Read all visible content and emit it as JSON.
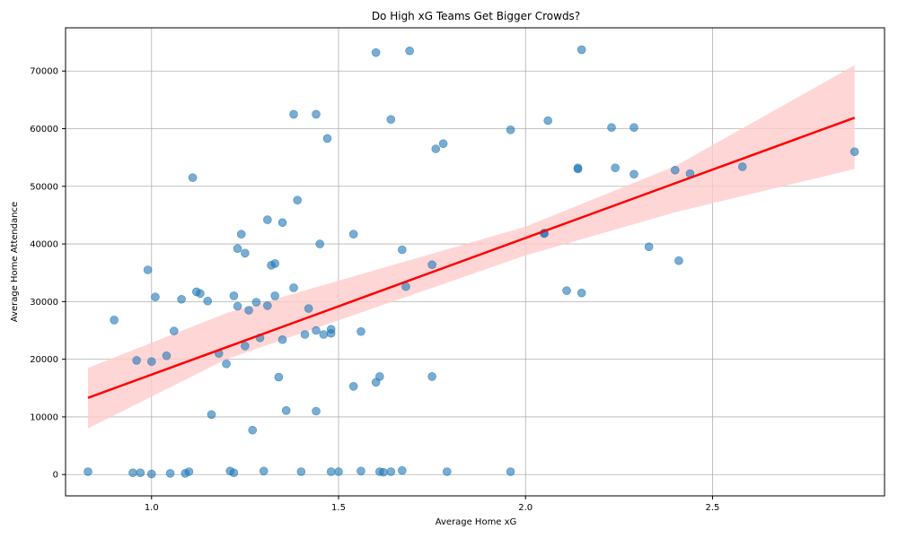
{
  "chart_data": {
    "type": "scatter",
    "title": "Do High xG Teams Get Bigger Crowds?",
    "xlabel": "Average Home xG",
    "ylabel": "Average Home Attendance",
    "xlim": [
      0.77,
      2.96
    ],
    "ylim": [
      -3700,
      77500
    ],
    "grid": true,
    "x_ticks": [
      1.0,
      1.5,
      2.0,
      2.5
    ],
    "x_tick_labels": [
      "1.0",
      "1.5",
      "2.0",
      "2.5"
    ],
    "y_ticks": [
      0,
      10000,
      20000,
      30000,
      40000,
      50000,
      60000,
      70000
    ],
    "y_tick_labels": [
      "0",
      "10000",
      "20000",
      "30000",
      "40000",
      "50000",
      "60000",
      "70000"
    ],
    "point_color": "#1f77b4",
    "line_color": "#ff0000",
    "band_color": "#ffcccc",
    "regression": {
      "x": [
        0.83,
        2.88
      ],
      "y": [
        13300,
        61900
      ]
    },
    "confidence_band": {
      "x": [
        0.83,
        1.2,
        1.6,
        2.0,
        2.4,
        2.88
      ],
      "upper": [
        18500,
        28000,
        35500,
        43000,
        53500,
        71000
      ],
      "lower": [
        8000,
        20000,
        29000,
        38000,
        45500,
        53000
      ]
    },
    "points": [
      {
        "x": 0.83,
        "y": 500
      },
      {
        "x": 0.95,
        "y": 300
      },
      {
        "x": 0.97,
        "y": 300
      },
      {
        "x": 1.0,
        "y": 100
      },
      {
        "x": 1.05,
        "y": 200
      },
      {
        "x": 1.09,
        "y": 200
      },
      {
        "x": 1.1,
        "y": 500
      },
      {
        "x": 1.21,
        "y": 600
      },
      {
        "x": 1.22,
        "y": 300
      },
      {
        "x": 1.3,
        "y": 600
      },
      {
        "x": 1.4,
        "y": 500
      },
      {
        "x": 1.48,
        "y": 500
      },
      {
        "x": 1.5,
        "y": 500
      },
      {
        "x": 1.56,
        "y": 600
      },
      {
        "x": 1.61,
        "y": 500
      },
      {
        "x": 1.62,
        "y": 400
      },
      {
        "x": 1.64,
        "y": 500
      },
      {
        "x": 1.67,
        "y": 700
      },
      {
        "x": 1.79,
        "y": 500
      },
      {
        "x": 1.96,
        "y": 500
      },
      {
        "x": 0.9,
        "y": 26800
      },
      {
        "x": 0.96,
        "y": 19800
      },
      {
        "x": 0.99,
        "y": 35500
      },
      {
        "x": 1.0,
        "y": 19600
      },
      {
        "x": 1.01,
        "y": 30800
      },
      {
        "x": 1.04,
        "y": 20600
      },
      {
        "x": 1.06,
        "y": 24900
      },
      {
        "x": 1.08,
        "y": 30400
      },
      {
        "x": 1.11,
        "y": 51500
      },
      {
        "x": 1.12,
        "y": 31700
      },
      {
        "x": 1.13,
        "y": 31400
      },
      {
        "x": 1.15,
        "y": 30100
      },
      {
        "x": 1.16,
        "y": 10400
      },
      {
        "x": 1.18,
        "y": 21000
      },
      {
        "x": 1.2,
        "y": 19200
      },
      {
        "x": 1.22,
        "y": 31000
      },
      {
        "x": 1.23,
        "y": 39200
      },
      {
        "x": 1.23,
        "y": 29200
      },
      {
        "x": 1.24,
        "y": 41700
      },
      {
        "x": 1.25,
        "y": 38400
      },
      {
        "x": 1.25,
        "y": 22300
      },
      {
        "x": 1.26,
        "y": 28500
      },
      {
        "x": 1.27,
        "y": 7700
      },
      {
        "x": 1.28,
        "y": 29900
      },
      {
        "x": 1.29,
        "y": 23700
      },
      {
        "x": 1.31,
        "y": 44200
      },
      {
        "x": 1.31,
        "y": 29300
      },
      {
        "x": 1.32,
        "y": 36300
      },
      {
        "x": 1.33,
        "y": 36600
      },
      {
        "x": 1.33,
        "y": 31000
      },
      {
        "x": 1.34,
        "y": 16900
      },
      {
        "x": 1.35,
        "y": 43700
      },
      {
        "x": 1.35,
        "y": 23400
      },
      {
        "x": 1.36,
        "y": 11100
      },
      {
        "x": 1.38,
        "y": 62500
      },
      {
        "x": 1.38,
        "y": 32400
      },
      {
        "x": 1.39,
        "y": 47600
      },
      {
        "x": 1.41,
        "y": 24300
      },
      {
        "x": 1.42,
        "y": 28800
      },
      {
        "x": 1.44,
        "y": 62500
      },
      {
        "x": 1.44,
        "y": 11000
      },
      {
        "x": 1.44,
        "y": 25000
      },
      {
        "x": 1.45,
        "y": 40000
      },
      {
        "x": 1.46,
        "y": 24300
      },
      {
        "x": 1.47,
        "y": 58300
      },
      {
        "x": 1.48,
        "y": 24500
      },
      {
        "x": 1.48,
        "y": 25200
      },
      {
        "x": 1.54,
        "y": 41700
      },
      {
        "x": 1.54,
        "y": 15300
      },
      {
        "x": 1.56,
        "y": 24800
      },
      {
        "x": 1.6,
        "y": 73200
      },
      {
        "x": 1.6,
        "y": 16000
      },
      {
        "x": 1.61,
        "y": 17000
      },
      {
        "x": 1.64,
        "y": 61600
      },
      {
        "x": 1.67,
        "y": 39000
      },
      {
        "x": 1.68,
        "y": 32600
      },
      {
        "x": 1.69,
        "y": 73500
      },
      {
        "x": 1.75,
        "y": 36400
      },
      {
        "x": 1.75,
        "y": 17000
      },
      {
        "x": 1.76,
        "y": 56500
      },
      {
        "x": 1.78,
        "y": 57400
      },
      {
        "x": 1.96,
        "y": 59800
      },
      {
        "x": 2.05,
        "y": 41900
      },
      {
        "x": 2.05,
        "y": 41800
      },
      {
        "x": 2.06,
        "y": 61400
      },
      {
        "x": 2.11,
        "y": 31900
      },
      {
        "x": 2.14,
        "y": 53200
      },
      {
        "x": 2.14,
        "y": 53000
      },
      {
        "x": 2.15,
        "y": 73700
      },
      {
        "x": 2.15,
        "y": 31500
      },
      {
        "x": 2.23,
        "y": 60200
      },
      {
        "x": 2.24,
        "y": 53200
      },
      {
        "x": 2.29,
        "y": 52100
      },
      {
        "x": 2.29,
        "y": 60200
      },
      {
        "x": 2.33,
        "y": 39500
      },
      {
        "x": 2.4,
        "y": 52800
      },
      {
        "x": 2.41,
        "y": 37100
      },
      {
        "x": 2.44,
        "y": 52200
      },
      {
        "x": 2.58,
        "y": 53400
      },
      {
        "x": 2.88,
        "y": 56000
      }
    ]
  }
}
